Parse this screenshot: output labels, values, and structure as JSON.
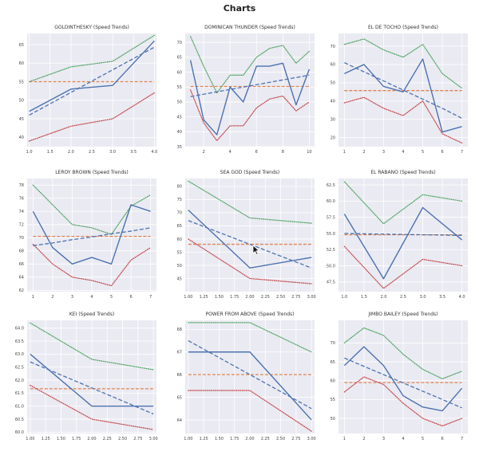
{
  "page_title": "Charts",
  "colors": {
    "background": "#eaeaf2",
    "grid": "#ffffff",
    "actual": "#4c72b0",
    "average": "#dd8452",
    "max": "#55a868",
    "min": "#c44e52"
  },
  "cursor_icon": "mouse-pointer-icon",
  "chart_data": [
    {
      "type": "line",
      "title": "GOLDINTHESKY (Speed Trends)",
      "grid": true,
      "xlim": [
        0.95,
        4.05
      ],
      "ylim": [
        37.5,
        68
      ],
      "xticks": [
        "1.0",
        "1.5",
        "2.0",
        "2.5",
        "3.0",
        "3.5",
        "4.0"
      ],
      "xtick_values": [
        1.0,
        1.5,
        2.0,
        2.5,
        3.0,
        3.5,
        4.0
      ],
      "yticks": [
        "40",
        "45",
        "50",
        "55",
        "60",
        "65"
      ],
      "ytick_values": [
        40,
        45,
        50,
        55,
        60,
        65
      ],
      "x": [
        1,
        2,
        3,
        4
      ],
      "series": [
        {
          "style": "solid",
          "color": "#4c72b0",
          "values": [
            47,
            53,
            54,
            66
          ]
        },
        {
          "style": "trend",
          "color": "#4c72b0",
          "values": [
            46,
            52.1,
            58.2,
            64.3
          ]
        },
        {
          "style": "avg",
          "color": "#dd8452",
          "values": [
            55,
            55,
            55,
            55
          ]
        },
        {
          "style": "max",
          "color": "#55a868",
          "values": [
            55,
            59,
            60.5,
            67.5
          ]
        },
        {
          "style": "min",
          "color": "#c44e52",
          "values": [
            39,
            43,
            45,
            52
          ]
        }
      ]
    },
    {
      "type": "line",
      "title": "DOMINICAN THUNDER (Speed Trends)",
      "grid": true,
      "xlim": [
        0.6,
        10.4
      ],
      "ylim": [
        35,
        73
      ],
      "xticks": [
        "2",
        "4",
        "6",
        "8",
        "10"
      ],
      "xtick_values": [
        2,
        4,
        6,
        8,
        10
      ],
      "yticks": [
        "35",
        "40",
        "45",
        "50",
        "55",
        "60",
        "65",
        "70"
      ],
      "ytick_values": [
        35,
        40,
        45,
        50,
        55,
        60,
        65,
        70
      ],
      "x": [
        1,
        2,
        3,
        4,
        5,
        6,
        7,
        8,
        9,
        10
      ],
      "series": [
        {
          "style": "solid",
          "color": "#4c72b0",
          "values": [
            64,
            44,
            39,
            55,
            50,
            62,
            62,
            63,
            49,
            61
          ]
        },
        {
          "style": "trend",
          "color": "#4c72b0",
          "values": [
            51.8,
            52.6,
            53.4,
            54.2,
            55,
            55.8,
            56.6,
            57.4,
            58.2,
            59
          ]
        },
        {
          "style": "avg",
          "color": "#dd8452",
          "values": [
            55.2,
            55.2,
            55.2,
            55.2,
            55.2,
            55.2,
            55.2,
            55.2,
            55.2,
            55.2
          ]
        },
        {
          "style": "max",
          "color": "#55a868",
          "values": [
            72,
            62,
            53,
            59,
            59,
            65,
            68,
            69,
            63,
            67
          ]
        },
        {
          "style": "min",
          "color": "#c44e52",
          "values": [
            54,
            43,
            37,
            42,
            42,
            48,
            51,
            52,
            47,
            50
          ]
        }
      ]
    },
    {
      "type": "line",
      "title": "EL DE TOCHO (Speed Trends)",
      "grid": true,
      "xlim": [
        0.7,
        7.3
      ],
      "ylim": [
        15,
        77
      ],
      "xticks": [
        "1",
        "2",
        "3",
        "4",
        "5",
        "6",
        "7"
      ],
      "xtick_values": [
        1,
        2,
        3,
        4,
        5,
        6,
        7
      ],
      "yticks": [
        "20",
        "30",
        "40",
        "50",
        "60",
        "70"
      ],
      "ytick_values": [
        20,
        30,
        40,
        50,
        60,
        70
      ],
      "x": [
        1,
        2,
        3,
        4,
        5,
        6,
        7
      ],
      "series": [
        {
          "style": "solid",
          "color": "#4c72b0",
          "values": [
            55,
            60,
            48,
            45,
            63,
            23,
            26
          ]
        },
        {
          "style": "trend",
          "color": "#4c72b0",
          "values": [
            61,
            56,
            51,
            46,
            41,
            36,
            30.5
          ]
        },
        {
          "style": "avg",
          "color": "#dd8452",
          "values": [
            45.7,
            45.7,
            45.7,
            45.7,
            45.7,
            45.7,
            45.7
          ]
        },
        {
          "style": "max",
          "color": "#55a868",
          "values": [
            71,
            74,
            68,
            64,
            71,
            55,
            47
          ]
        },
        {
          "style": "min",
          "color": "#c44e52",
          "values": [
            39,
            42,
            36,
            32,
            40,
            22,
            17
          ]
        }
      ]
    },
    {
      "type": "line",
      "title": "LEROY BROWN (Speed Trends)",
      "grid": true,
      "xlim": [
        0.7,
        7.3
      ],
      "ylim": [
        61.8,
        79
      ],
      "xticks": [
        "1",
        "2",
        "3",
        "4",
        "5",
        "6",
        "7"
      ],
      "xtick_values": [
        1,
        2,
        3,
        4,
        5,
        6,
        7
      ],
      "yticks": [
        "62",
        "64",
        "66",
        "68",
        "70",
        "72",
        "74",
        "76",
        "78"
      ],
      "ytick_values": [
        62,
        64,
        66,
        68,
        70,
        72,
        74,
        76,
        78
      ],
      "x": [
        1,
        2,
        3,
        4,
        5,
        6,
        7
      ],
      "series": [
        {
          "style": "solid",
          "color": "#4c72b0",
          "values": [
            74,
            68.5,
            66,
            67,
            66,
            75,
            74
          ]
        },
        {
          "style": "trend",
          "color": "#4c72b0",
          "values": [
            68.8,
            69.2,
            69.7,
            70.1,
            70.6,
            71,
            71.5
          ]
        },
        {
          "style": "avg",
          "color": "#dd8452",
          "values": [
            70.2,
            70.2,
            70.2,
            70.2,
            70.2,
            70.2,
            70.2
          ]
        },
        {
          "style": "max",
          "color": "#55a868",
          "values": [
            78,
            75,
            72,
            71.5,
            70.5,
            74.8,
            76.5
          ]
        },
        {
          "style": "min",
          "color": "#c44e52",
          "values": [
            69,
            66,
            64,
            63.5,
            62.7,
            66.6,
            68.5
          ]
        }
      ]
    },
    {
      "type": "line",
      "title": "SEA GOD (Speed Trends)",
      "grid": true,
      "xlim": [
        0.95,
        3.05
      ],
      "ylim": [
        40,
        83
      ],
      "xticks": [
        "1.00",
        "1.25",
        "1.50",
        "1.75",
        "2.00",
        "2.25",
        "2.50",
        "2.75",
        "3.00"
      ],
      "xtick_values": [
        1.0,
        1.25,
        1.5,
        1.75,
        2.0,
        2.25,
        2.5,
        2.75,
        3.0
      ],
      "yticks": [
        "45",
        "50",
        "55",
        "60",
        "65",
        "70",
        "75",
        "80"
      ],
      "ytick_values": [
        45,
        50,
        55,
        60,
        65,
        70,
        75,
        80
      ],
      "x": [
        1,
        2,
        3
      ],
      "series": [
        {
          "style": "solid",
          "color": "#4c72b0",
          "values": [
            71,
            49,
            53
          ]
        },
        {
          "style": "trend",
          "color": "#4c72b0",
          "values": [
            67,
            58,
            49
          ]
        },
        {
          "style": "avg",
          "color": "#dd8452",
          "values": [
            58,
            58,
            58
          ]
        },
        {
          "style": "max",
          "color": "#55a868",
          "values": [
            82,
            68,
            66
          ]
        },
        {
          "style": "min",
          "color": "#c44e52",
          "values": [
            60,
            45,
            43
          ]
        }
      ]
    },
    {
      "type": "line",
      "title": "EL RABANO (Speed Trends)",
      "grid": true,
      "xlim": [
        0.85,
        4.15
      ],
      "ylim": [
        46,
        63.5
      ],
      "xticks": [
        "1.0",
        "1.5",
        "2.0",
        "2.5",
        "3.0",
        "3.5",
        "4.0"
      ],
      "xtick_values": [
        1.0,
        1.5,
        2.0,
        2.5,
        3.0,
        3.5,
        4.0
      ],
      "yticks": [
        "47.5",
        "50.0",
        "52.5",
        "55.0",
        "57.5",
        "60.0",
        "62.5"
      ],
      "ytick_values": [
        47.5,
        50,
        52.5,
        55,
        57.5,
        60,
        62.5
      ],
      "x": [
        1,
        2,
        3,
        4
      ],
      "series": [
        {
          "style": "solid",
          "color": "#4c72b0",
          "values": [
            58,
            48,
            59,
            54
          ]
        },
        {
          "style": "trend",
          "color": "#4c72b0",
          "values": [
            55,
            54.9,
            54.8,
            54.7
          ]
        },
        {
          "style": "avg",
          "color": "#dd8452",
          "values": [
            54.8,
            54.8,
            54.8,
            54.8
          ]
        },
        {
          "style": "max",
          "color": "#55a868",
          "values": [
            63,
            56.5,
            61,
            60
          ]
        },
        {
          "style": "min",
          "color": "#c44e52",
          "values": [
            53,
            46.5,
            51,
            50
          ]
        }
      ]
    },
    {
      "type": "line",
      "title": "KEI (Speed Trends)",
      "grid": true,
      "xlim": [
        0.95,
        3.05
      ],
      "ylim": [
        59.95,
        64.3
      ],
      "xticks": [
        "1.00",
        "1.25",
        "1.50",
        "1.75",
        "2.00",
        "2.25",
        "2.50",
        "2.75",
        "3.00"
      ],
      "xtick_values": [
        1.0,
        1.25,
        1.5,
        1.75,
        2.0,
        2.25,
        2.5,
        2.75,
        3.0
      ],
      "yticks": [
        "60.0",
        "60.5",
        "61.0",
        "61.5",
        "62.0",
        "62.5",
        "63.0",
        "63.5",
        "64.0"
      ],
      "ytick_values": [
        60,
        60.5,
        61,
        61.5,
        62,
        62.5,
        63,
        63.5,
        64
      ],
      "x": [
        1,
        2,
        3
      ],
      "series": [
        {
          "style": "solid",
          "color": "#4c72b0",
          "values": [
            63,
            61,
            61
          ]
        },
        {
          "style": "trend",
          "color": "#4c72b0",
          "values": [
            62.7,
            61.7,
            60.7
          ]
        },
        {
          "style": "avg",
          "color": "#dd8452",
          "values": [
            61.67,
            61.67,
            61.67
          ]
        },
        {
          "style": "max",
          "color": "#55a868",
          "values": [
            64.2,
            62.8,
            62.4
          ]
        },
        {
          "style": "min",
          "color": "#c44e52",
          "values": [
            61.8,
            60.5,
            60.1
          ]
        }
      ]
    },
    {
      "type": "line",
      "title": "POWER FROM ABOVE (Speed Trends)",
      "grid": true,
      "xlim": [
        0.95,
        3.05
      ],
      "ylim": [
        63.4,
        68.4
      ],
      "xticks": [
        "1.00",
        "1.25",
        "1.50",
        "1.75",
        "2.00",
        "2.25",
        "2.50",
        "2.75",
        "3.00"
      ],
      "xtick_values": [
        1.0,
        1.25,
        1.5,
        1.75,
        2.0,
        2.25,
        2.5,
        2.75,
        3.0
      ],
      "yticks": [
        "64",
        "65",
        "66",
        "67",
        "68"
      ],
      "ytick_values": [
        64,
        65,
        66,
        67,
        68
      ],
      "x": [
        1,
        2,
        3
      ],
      "series": [
        {
          "style": "solid",
          "color": "#4c72b0",
          "values": [
            67,
            67,
            64
          ]
        },
        {
          "style": "trend",
          "color": "#4c72b0",
          "values": [
            67.5,
            66,
            64.5
          ]
        },
        {
          "style": "avg",
          "color": "#dd8452",
          "values": [
            66,
            66,
            66
          ]
        },
        {
          "style": "max",
          "color": "#55a868",
          "values": [
            68.3,
            68.3,
            67
          ]
        },
        {
          "style": "min",
          "color": "#c44e52",
          "values": [
            65.3,
            65.3,
            63.5
          ]
        }
      ]
    },
    {
      "type": "line",
      "title": "JIMBO BAILEY (Speed Trends)",
      "grid": true,
      "xlim": [
        0.7,
        7.3
      ],
      "ylim": [
        46,
        76
      ],
      "xticks": [
        "1",
        "2",
        "3",
        "4",
        "5",
        "6",
        "7"
      ],
      "xtick_values": [
        1,
        2,
        3,
        4,
        5,
        6,
        7
      ],
      "yticks": [
        "50",
        "55",
        "60",
        "65",
        "70"
      ],
      "ytick_values": [
        50,
        55,
        60,
        65,
        70
      ],
      "x": [
        1,
        2,
        3,
        4,
        5,
        6,
        7
      ],
      "series": [
        {
          "style": "solid",
          "color": "#4c72b0",
          "values": [
            64,
            69,
            64,
            56,
            53,
            52,
            58
          ]
        },
        {
          "style": "trend",
          "color": "#4c72b0",
          "values": [
            66,
            63.8,
            61.6,
            59.4,
            57.2,
            55,
            52.8
          ]
        },
        {
          "style": "avg",
          "color": "#dd8452",
          "values": [
            59.5,
            59.5,
            59.5,
            59.5,
            59.5,
            59.5,
            59.5
          ]
        },
        {
          "style": "max",
          "color": "#55a868",
          "values": [
            70,
            74,
            72,
            67,
            63,
            60.5,
            62.5
          ]
        },
        {
          "style": "min",
          "color": "#c44e52",
          "values": [
            57,
            61,
            59,
            54,
            50,
            48,
            50
          ]
        }
      ]
    }
  ]
}
